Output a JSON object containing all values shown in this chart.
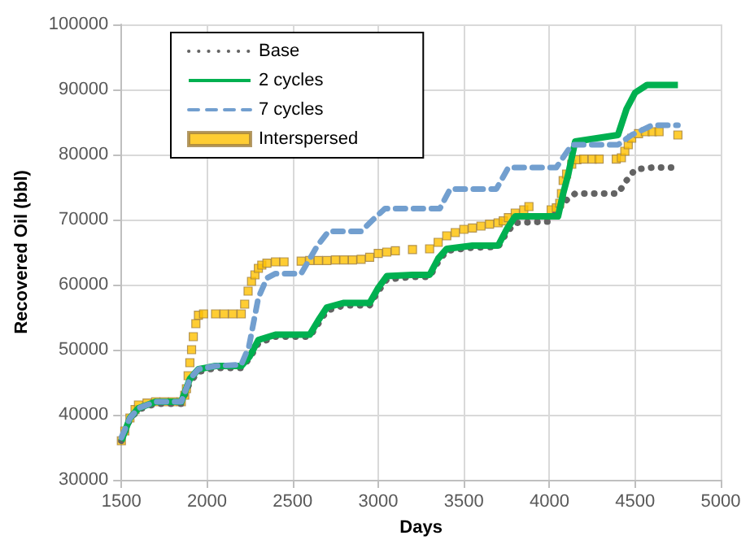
{
  "chart_data": {
    "type": "line",
    "xlabel": "Days",
    "ylabel": "Recovered Oil (bbl)",
    "xlim": [
      1500,
      5000
    ],
    "xticks": [
      1500,
      2000,
      2500,
      3000,
      3500,
      4000,
      4500,
      5000
    ],
    "ylim": [
      30000,
      100000
    ],
    "yticks": [
      30000,
      40000,
      50000,
      60000,
      70000,
      80000,
      90000,
      100000
    ],
    "grid": true,
    "legend": "top left",
    "series": [
      {
        "name": "Base",
        "color": "#636363",
        "line_style": "dotted",
        "x": [
          1500,
          1550,
          1600,
          1700,
          1850,
          1900,
          1950,
          2050,
          2200,
          2250,
          2300,
          2400,
          2600,
          2650,
          2700,
          2800,
          2950,
          3000,
          3050,
          3200,
          3300,
          3350,
          3400,
          3550,
          3700,
          3750,
          3800,
          4000,
          4050,
          4100,
          4150,
          4400,
          4450,
          4500,
          4600,
          4750
        ],
        "values": [
          36000,
          39300,
          40800,
          41700,
          41700,
          45000,
          46600,
          47200,
          47200,
          48700,
          51000,
          52000,
          52000,
          54000,
          56000,
          56800,
          56800,
          59000,
          60800,
          61200,
          61200,
          63500,
          65200,
          65700,
          65800,
          68000,
          69500,
          69700,
          71500,
          73000,
          74000,
          74000,
          76000,
          77700,
          78000,
          78000
        ]
      },
      {
        "name": "2 cycles",
        "color": "#00b050",
        "line_style": "solid",
        "x": [
          1500,
          1550,
          1600,
          1700,
          1850,
          1900,
          1950,
          2050,
          2200,
          2250,
          2300,
          2400,
          2600,
          2650,
          2700,
          2800,
          2950,
          3000,
          3050,
          3200,
          3300,
          3350,
          3400,
          3550,
          3700,
          3750,
          3800,
          4050,
          4080,
          4110,
          4150,
          4400,
          4450,
          4500,
          4570,
          4750
        ],
        "values": [
          36000,
          39500,
          41000,
          42000,
          42000,
          45500,
          47000,
          47500,
          47500,
          49000,
          51500,
          52300,
          52300,
          54500,
          56500,
          57200,
          57200,
          59500,
          61300,
          61500,
          61500,
          64000,
          65500,
          66000,
          66000,
          68500,
          70500,
          70500,
          74000,
          77000,
          82000,
          83000,
          87000,
          89500,
          90700,
          90700
        ]
      },
      {
        "name": "7 cycles",
        "color": "#729fcf",
        "line_style": "dashed",
        "x": [
          1500,
          1550,
          1600,
          1700,
          1850,
          1900,
          1950,
          2050,
          2200,
          2245,
          2300,
          2350,
          2400,
          2550,
          2645,
          2710,
          2900,
          2970,
          3040,
          3360,
          3420,
          3690,
          3760,
          4040,
          4130,
          4400,
          4480,
          4600,
          4750
        ],
        "values": [
          36500,
          39500,
          41000,
          42000,
          42000,
          45500,
          47000,
          47500,
          47700,
          50500,
          58000,
          61000,
          61700,
          61700,
          66000,
          68200,
          68200,
          70000,
          71700,
          71700,
          74700,
          74700,
          78000,
          78000,
          81500,
          81500,
          83000,
          84500,
          84500
        ]
      },
      {
        "name": "Interspersed",
        "type": "scatter",
        "color": "#ffc000",
        "marker": "square",
        "x": [
          1500,
          1520,
          1550,
          1580,
          1600,
          1650,
          1700,
          1750,
          1800,
          1850,
          1870,
          1880,
          1890,
          1900,
          1910,
          1920,
          1935,
          1950,
          1980,
          2050,
          2100,
          2150,
          2200,
          2220,
          2240,
          2260,
          2280,
          2300,
          2320,
          2350,
          2400,
          2450,
          2550,
          2600,
          2650,
          2700,
          2750,
          2800,
          2850,
          2900,
          2950,
          3000,
          3050,
          3100,
          3200,
          3300,
          3350,
          3400,
          3450,
          3500,
          3550,
          3600,
          3650,
          3700,
          3730,
          3760,
          3800,
          3850,
          3880,
          4010,
          4040,
          4060,
          4070,
          4080,
          4100,
          4130,
          4160,
          4200,
          4250,
          4290,
          4390,
          4420,
          4440,
          4460,
          4480,
          4520,
          4560,
          4600,
          4640,
          4750
        ],
        "values": [
          36000,
          37500,
          39500,
          40800,
          41500,
          41800,
          42000,
          42000,
          42000,
          42000,
          43000,
          44000,
          46000,
          48000,
          50000,
          52000,
          54000,
          55300,
          55500,
          55500,
          55500,
          55500,
          55500,
          57000,
          59000,
          60500,
          61500,
          62500,
          63000,
          63300,
          63500,
          63500,
          63600,
          63700,
          63700,
          63700,
          63800,
          63800,
          63800,
          63900,
          64200,
          64800,
          65000,
          65200,
          65400,
          65500,
          66500,
          67500,
          68000,
          68500,
          68700,
          69000,
          69300,
          69500,
          69800,
          70300,
          71000,
          71500,
          72000,
          71500,
          71800,
          72500,
          74000,
          76000,
          77000,
          78500,
          79200,
          79300,
          79300,
          79300,
          79300,
          79500,
          80500,
          81500,
          82500,
          83200,
          83500,
          83500,
          83500,
          83000
        ]
      }
    ]
  }
}
